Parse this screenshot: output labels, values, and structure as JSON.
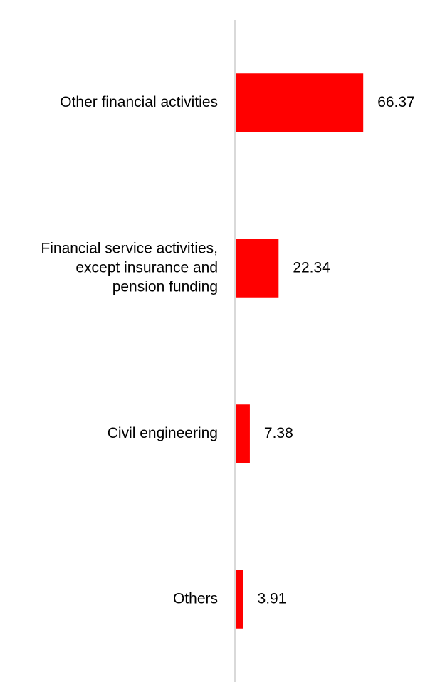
{
  "chart_data": {
    "type": "bar",
    "orientation": "horizontal",
    "title": "",
    "xlabel": "",
    "ylabel": "",
    "categories": [
      [
        "Other financial activities"
      ],
      [
        "Financial service activities,",
        "except insurance and",
        "pension funding"
      ],
      [
        "Civil engineering"
      ],
      [
        "Others"
      ]
    ],
    "values": [
      66.37,
      22.34,
      7.38,
      3.91
    ],
    "value_labels": [
      "66.37",
      "22.34",
      "7.38",
      "3.91"
    ],
    "xlim": [
      0,
      100
    ],
    "grid": false,
    "legend": "none",
    "bar_color": "#ff0000",
    "axis_color": "#d9d9d9"
  }
}
